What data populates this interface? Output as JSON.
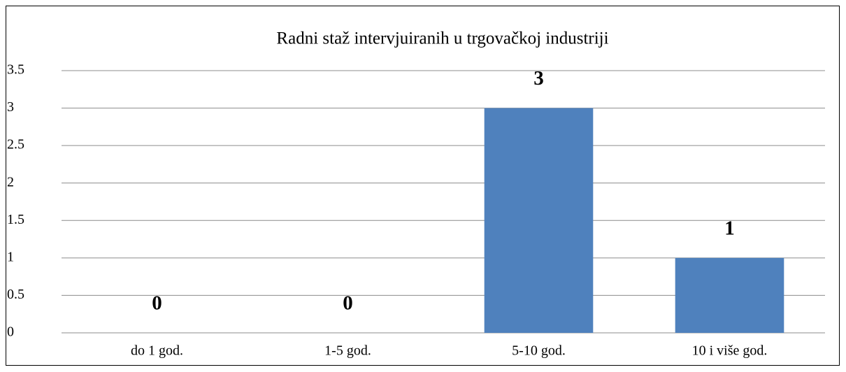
{
  "chart_data": {
    "type": "bar",
    "title": "Radni staž intervjuiranih u trgovačkoj industriji",
    "categories": [
      "do 1 god.",
      "1-5 god.",
      "5-10 god.",
      "10 i više god."
    ],
    "values": [
      0,
      0,
      3,
      1
    ],
    "color": "#4f81bd",
    "ylim": [
      0,
      3.5
    ],
    "yticks": [
      0,
      0.5,
      1,
      1.5,
      2,
      2.5,
      3,
      3.5
    ],
    "grid": true,
    "data_labels": true
  }
}
